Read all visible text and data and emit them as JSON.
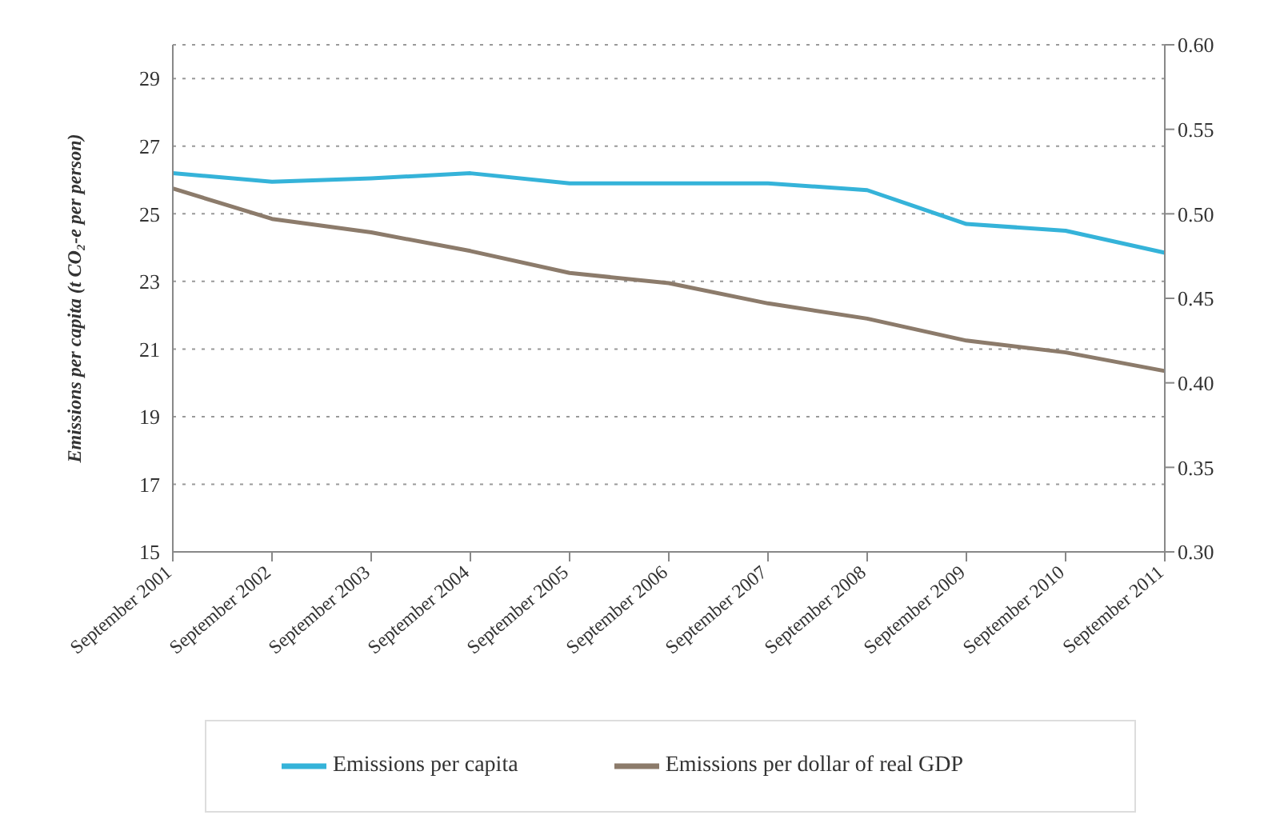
{
  "chart_data": {
    "type": "line",
    "ylabel": "Emissions per capita (t CO₂-e per person)",
    "categories": [
      "September 2001",
      "September 2002",
      "September 2003",
      "September 2004",
      "September 2005",
      "September 2006",
      "September 2007",
      "September 2008",
      "September 2009",
      "September 2010",
      "September 2011"
    ],
    "series": [
      {
        "name": "Emissions per capita",
        "color": "#35b3d9",
        "values": [
          26.2,
          25.95,
          26.05,
          26.2,
          25.9,
          25.9,
          25.9,
          25.7,
          24.7,
          24.5,
          23.85
        ]
      },
      {
        "name": "Emissions per dollar of real GDP",
        "color": "#8c7b6b",
        "axis": "y2",
        "values": [
          0.515,
          0.497,
          0.489,
          0.478,
          0.465,
          0.459,
          0.447,
          0.438,
          0.425,
          0.418,
          0.407
        ]
      }
    ],
    "ylim": [
      15,
      30
    ],
    "yticks": [
      15,
      17,
      19,
      21,
      23,
      25,
      27,
      29
    ],
    "y2lim": [
      0.3,
      0.6
    ],
    "y2ticks": [
      {
        "value": 0.3,
        "label": "0.30"
      },
      {
        "value": 0.35,
        "label": "0.35"
      },
      {
        "value": 0.4,
        "label": "0.40"
      },
      {
        "value": 0.45,
        "label": "0.45"
      },
      {
        "value": 0.5,
        "label": "0.50"
      },
      {
        "value": 0.55,
        "label": "0.55"
      },
      {
        "value": 0.6,
        "label": "0.60"
      }
    ],
    "grid": "y",
    "legend": "bottom",
    "marker": "none",
    "line_style": "solid"
  }
}
